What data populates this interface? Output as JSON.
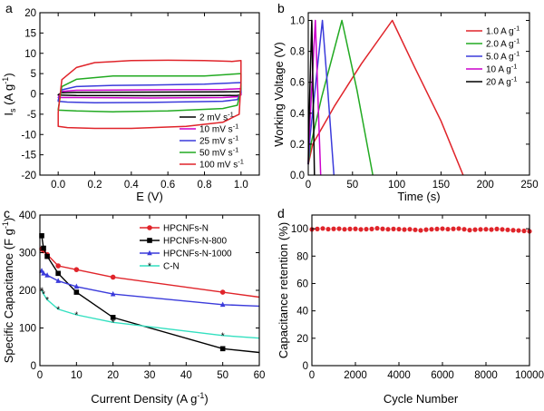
{
  "figure": {
    "panel_letters": [
      "a",
      "b",
      "c",
      "d"
    ]
  },
  "chart_data": [
    {
      "panel": "a",
      "type": "line",
      "xlabel": "E (V)",
      "ylabel": "I_s (A g^-1)",
      "ylabel_parts": {
        "base": "I",
        "sub": "s",
        "unit_pre": " (A g",
        "sup": "-1",
        "unit_post": ")"
      },
      "xlim": [
        -0.1,
        1.1
      ],
      "ylim": [
        -20,
        20
      ],
      "xticks": [
        0.0,
        0.2,
        0.4,
        0.6,
        0.8,
        1.0
      ],
      "xtick_labels": [
        "0.0",
        "0.2",
        "0.4",
        "0.6",
        "0.8",
        "1.0"
      ],
      "yticks": [
        -20,
        -15,
        -10,
        -5,
        0,
        5,
        10,
        15,
        20
      ],
      "ytick_labels": [
        "-20",
        "-15",
        "-10",
        "-5",
        "0",
        "5",
        "10",
        "15",
        "20"
      ],
      "legend_position": "bottom-right",
      "series": [
        {
          "name": "2 mV s-1",
          "label_text": "2 mV s",
          "label_sup": "-1",
          "color": "#000000",
          "upper": [
            [
              0.0,
              -0.2
            ],
            [
              0.02,
              0.3
            ],
            [
              0.1,
              0.4
            ],
            [
              0.5,
              0.45
            ],
            [
              0.9,
              0.5
            ],
            [
              1.0,
              0.55
            ]
          ],
          "lower": [
            [
              1.0,
              -0.25
            ],
            [
              0.98,
              -0.35
            ],
            [
              0.9,
              -0.4
            ],
            [
              0.5,
              -0.45
            ],
            [
              0.1,
              -0.4
            ],
            [
              0.0,
              -0.3
            ]
          ]
        },
        {
          "name": "10 mV s-1",
          "label_text": "10 mV s",
          "label_sup": "-1",
          "color": "#cc00cc",
          "upper": [
            [
              0.0,
              -0.9
            ],
            [
              0.02,
              0.6
            ],
            [
              0.1,
              0.9
            ],
            [
              0.5,
              1.0
            ],
            [
              0.9,
              1.1
            ],
            [
              1.0,
              1.3
            ]
          ],
          "lower": [
            [
              1.0,
              -0.2
            ],
            [
              0.98,
              -0.7
            ],
            [
              0.9,
              -0.9
            ],
            [
              0.5,
              -1.0
            ],
            [
              0.1,
              -0.9
            ],
            [
              0.0,
              -0.9
            ]
          ]
        },
        {
          "name": "25 mV s-1",
          "label_text": "25 mV s",
          "label_sup": "-1",
          "color": "#3b3bdb",
          "upper": [
            [
              0.0,
              -1.5
            ],
            [
              0.02,
              1.0
            ],
            [
              0.1,
              1.8
            ],
            [
              0.3,
              2.1
            ],
            [
              0.5,
              2.2
            ],
            [
              0.8,
              2.4
            ],
            [
              1.0,
              2.8
            ]
          ],
          "lower": [
            [
              1.0,
              0.4
            ],
            [
              0.98,
              -1.4
            ],
            [
              0.9,
              -1.8
            ],
            [
              0.5,
              -2.1
            ],
            [
              0.2,
              -2.2
            ],
            [
              0.05,
              -2.0
            ],
            [
              0.0,
              -1.8
            ]
          ]
        },
        {
          "name": "50 mV s-1",
          "label_text": "50 mV s",
          "label_sup": "-1",
          "color": "#22aa22",
          "upper": [
            [
              0.0,
              -3.8
            ],
            [
              0.02,
              1.8
            ],
            [
              0.1,
              3.6
            ],
            [
              0.3,
              4.4
            ],
            [
              0.5,
              4.4
            ],
            [
              0.8,
              4.4
            ],
            [
              1.0,
              5.0
            ]
          ],
          "lower": [
            [
              1.0,
              1.2
            ],
            [
              0.98,
              -2.8
            ],
            [
              0.9,
              -3.6
            ],
            [
              0.6,
              -4.2
            ],
            [
              0.3,
              -4.4
            ],
            [
              0.1,
              -4.2
            ],
            [
              0.0,
              -4.0
            ]
          ]
        },
        {
          "name": "100 mV s-1",
          "label_text": "100 mV s",
          "label_sup": "-1",
          "color": "#e0242a",
          "upper": [
            [
              0.0,
              -4.5
            ],
            [
              0.02,
              3.5
            ],
            [
              0.1,
              6.5
            ],
            [
              0.2,
              7.7
            ],
            [
              0.4,
              8.2
            ],
            [
              0.6,
              8.3
            ],
            [
              0.8,
              8.2
            ],
            [
              0.95,
              8.0
            ],
            [
              1.0,
              8.2
            ]
          ],
          "lower": [
            [
              1.0,
              3.0
            ],
            [
              0.99,
              -5.0
            ],
            [
              0.9,
              -7.0
            ],
            [
              0.7,
              -8.0
            ],
            [
              0.4,
              -8.5
            ],
            [
              0.2,
              -8.5
            ],
            [
              0.05,
              -8.3
            ],
            [
              0.0,
              -8.0
            ]
          ]
        }
      ]
    },
    {
      "panel": "b",
      "type": "line",
      "xlabel": "Time (s)",
      "ylabel": "Working Voltage (V)",
      "xlim": [
        0,
        250
      ],
      "ylim": [
        0.0,
        1.05
      ],
      "xticks": [
        0,
        50,
        100,
        150,
        200,
        250
      ],
      "xtick_labels": [
        "0",
        "50",
        "100",
        "150",
        "200",
        "250"
      ],
      "yticks": [
        0.0,
        0.2,
        0.4,
        0.6,
        0.8,
        1.0
      ],
      "ytick_labels": [
        "0.0",
        "0.2",
        "0.4",
        "0.6",
        "0.8",
        "1.0"
      ],
      "legend_position": "top-right",
      "series": [
        {
          "name": "1.0 A g-1",
          "label_text": "1.0 A g",
          "label_sup": "-1",
          "color": "#e0242a",
          "points": [
            [
              0,
              0.07
            ],
            [
              5,
              0.2
            ],
            [
              30,
              0.45
            ],
            [
              60,
              0.72
            ],
            [
              95,
              1.0
            ],
            [
              120,
              0.7
            ],
            [
              150,
              0.35
            ],
            [
              175,
              0.0
            ]
          ]
        },
        {
          "name": "2.0 A g-1",
          "label_text": "2.0 A g",
          "label_sup": "-1",
          "color": "#22aa22",
          "points": [
            [
              0,
              0.07
            ],
            [
              3,
              0.2
            ],
            [
              15,
              0.5
            ],
            [
              38,
              1.0
            ],
            [
              55,
              0.55
            ],
            [
              73,
              0.0
            ]
          ]
        },
        {
          "name": "5.0 A g-1",
          "label_text": "5.0 A g",
          "label_sup": "-1",
          "color": "#3b3bdb",
          "points": [
            [
              0,
              0.07
            ],
            [
              2,
              0.25
            ],
            [
              16,
              1.0
            ],
            [
              22,
              0.55
            ],
            [
              29,
              0.0
            ]
          ]
        },
        {
          "name": "10 A g-1",
          "label_text": "10 A g",
          "label_sup": "-1",
          "color": "#cc00cc",
          "points": [
            [
              0,
              0.07
            ],
            [
              1,
              0.25
            ],
            [
              8,
              1.0
            ],
            [
              11,
              0.5
            ],
            [
              14,
              0.0
            ]
          ]
        },
        {
          "name": "20 A g-1",
          "label_text": "20 A g",
          "label_sup": "-1",
          "color": "#000000",
          "points": [
            [
              0,
              0.07
            ],
            [
              0.6,
              0.3
            ],
            [
              4,
              1.0
            ],
            [
              5.5,
              0.5
            ],
            [
              7,
              0.0
            ]
          ]
        }
      ]
    },
    {
      "panel": "c",
      "type": "line",
      "xlabel_text": "Current Density (A g",
      "xlabel_sup": "-1",
      "xlabel_post": ")",
      "ylabel_text": "Specific Capacitance (F g",
      "ylabel_sup": "-1",
      "ylabel_post": ")",
      "xlim": [
        0,
        60
      ],
      "ylim": [
        0,
        400
      ],
      "xticks": [
        0,
        10,
        20,
        30,
        40,
        50,
        60
      ],
      "xtick_labels": [
        "0",
        "10",
        "20",
        "30",
        "40",
        "50",
        "60"
      ],
      "yticks": [
        0,
        100,
        200,
        300,
        400
      ],
      "ytick_labels": [
        "0",
        "100",
        "200",
        "300",
        "400"
      ],
      "legend_position": "top-right",
      "series": [
        {
          "name": "HPCNFs-N",
          "color": "#e0242a",
          "marker": "circle",
          "x": [
            0.5,
            1,
            2,
            5,
            10,
            20,
            50
          ],
          "y": [
            310,
            305,
            295,
            265,
            255,
            235,
            195
          ],
          "end": [
            60,
            182
          ]
        },
        {
          "name": "HPCNFs-N-800",
          "color": "#000000",
          "marker": "square",
          "x": [
            0.5,
            1,
            2,
            5,
            10,
            20,
            50
          ],
          "y": [
            345,
            312,
            290,
            245,
            195,
            128,
            45
          ],
          "end": [
            60,
            35
          ]
        },
        {
          "name": "HPCNFs-N-1000",
          "color": "#3b3bdb",
          "marker": "triangle",
          "x": [
            0.5,
            1,
            2,
            5,
            10,
            20,
            50
          ],
          "y": [
            252,
            245,
            240,
            225,
            210,
            190,
            162
          ],
          "end": [
            60,
            158
          ]
        },
        {
          "name": "C-N",
          "color": "#33e0c0",
          "marker": "star",
          "x": [
            0.5,
            1,
            2,
            5,
            10,
            20,
            50
          ],
          "y": [
            200,
            190,
            175,
            150,
            135,
            115,
            80
          ],
          "end": [
            60,
            73
          ]
        }
      ]
    },
    {
      "panel": "d",
      "type": "scatter",
      "xlabel": "Cycle Number",
      "ylabel": "Capacitance retention (%)",
      "xlim": [
        0,
        10000
      ],
      "ylim": [
        0,
        110
      ],
      "xticks": [
        0,
        2000,
        4000,
        6000,
        8000,
        10000
      ],
      "xtick_labels": [
        "0",
        "2000",
        "4000",
        "6000",
        "8000",
        "10000"
      ],
      "yticks": [
        0,
        20,
        40,
        60,
        80,
        100
      ],
      "ytick_labels": [
        "0",
        "20",
        "40",
        "60",
        "80",
        "100"
      ],
      "series": [
        {
          "name": "",
          "color": "#e0242a",
          "marker": "circle",
          "x": [
            0,
            250,
            500,
            750,
            1000,
            1250,
            1500,
            1750,
            2000,
            2250,
            2500,
            2750,
            3000,
            3250,
            3500,
            3750,
            4000,
            4250,
            4500,
            4750,
            5000,
            5250,
            5500,
            5750,
            6000,
            6250,
            6500,
            6750,
            7000,
            7250,
            7500,
            7750,
            8000,
            8250,
            8500,
            8750,
            9000,
            9250,
            9500,
            9750,
            10000
          ],
          "y": [
            99.5,
            99.8,
            100.2,
            99.7,
            99.9,
            100.0,
            99.6,
            99.8,
            99.9,
            99.5,
            99.7,
            99.8,
            100.3,
            99.9,
            99.6,
            99.8,
            99.7,
            99.4,
            99.6,
            99.2,
            98.8,
            99.3,
            99.6,
            99.8,
            100.0,
            99.7,
            99.9,
            100.1,
            99.6,
            99.0,
            99.3,
            99.5,
            99.6,
            99.4,
            99.8,
            99.5,
            99.2,
            98.9,
            98.7,
            98.4,
            98.1
          ]
        }
      ]
    }
  ]
}
